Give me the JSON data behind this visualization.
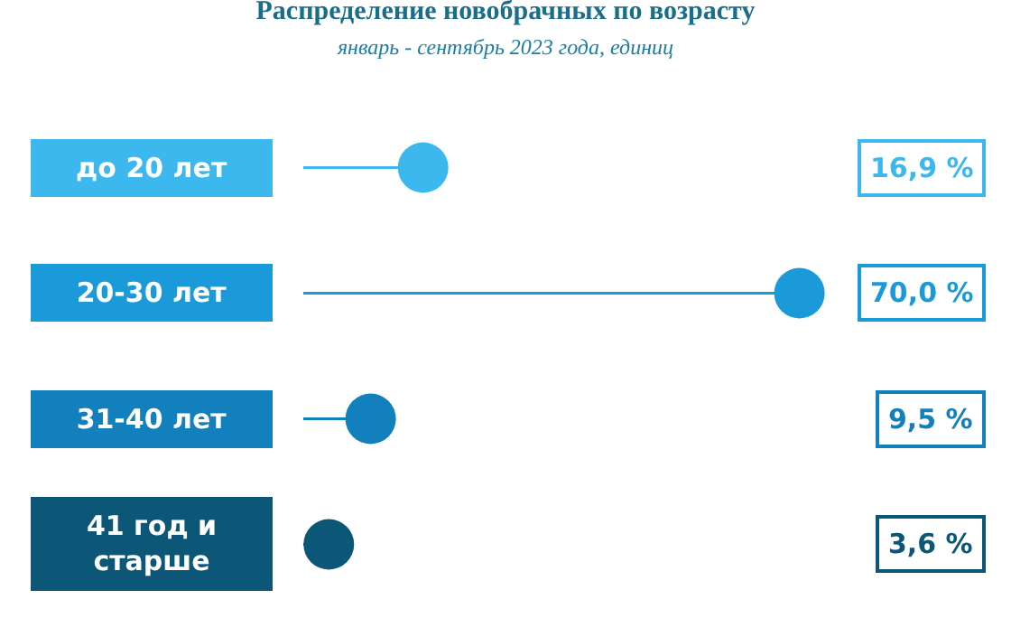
{
  "chart_data": {
    "type": "lollipop",
    "orientation": "horizontal",
    "title": "Распределение новобрачных по возрасту",
    "subtitle": "январь - сентябрь 2023 года, единиц",
    "categories": [
      "до 20 лет",
      "20-30 лет",
      "31-40 лет",
      "41 год и старше"
    ],
    "values": [
      16.9,
      70.0,
      9.5,
      3.6
    ],
    "colors": [
      "#3cb8ee",
      "#1a9ad8",
      "#1180bc",
      "#0c5677"
    ],
    "value_labels": [
      "16,9 %",
      "70,0 %",
      "9,5 %",
      "3,6 %"
    ],
    "tick_labels": false
  }
}
